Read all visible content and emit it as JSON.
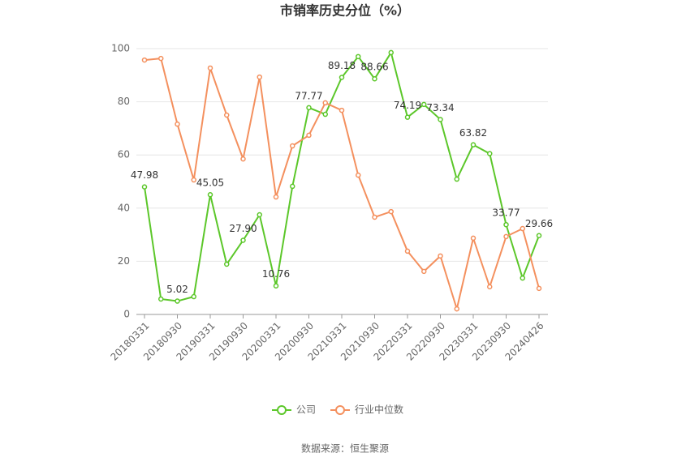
{
  "chart_data": {
    "type": "line",
    "title": "市销率历史分位（%）",
    "categories": [
      "20180331",
      null,
      "20180930",
      null,
      "20190331",
      null,
      "20190930",
      null,
      "20200331",
      null,
      "20200930",
      null,
      "20210331",
      null,
      "20210930",
      null,
      "20220331",
      null,
      "20220930",
      null,
      "20230331",
      null,
      "20230930",
      null,
      "20240426"
    ],
    "series": [
      {
        "name": "公司",
        "color": "#5cc72a",
        "values": [
          47.98,
          5.8,
          5.02,
          6.7,
          45.05,
          18.9,
          27.9,
          37.5,
          10.76,
          48.2,
          77.77,
          75.3,
          89.18,
          97.0,
          88.66,
          98.5,
          74.19,
          79.0,
          73.34,
          50.9,
          63.82,
          60.5,
          33.77,
          13.7,
          29.66
        ],
        "value_labels": [
          "47.98",
          null,
          "5.02",
          null,
          "45.05",
          null,
          "27.90",
          null,
          "10.76",
          null,
          "77.77",
          null,
          "89.18",
          null,
          "88.66",
          null,
          "74.19",
          null,
          "73.34",
          null,
          "63.82",
          null,
          "33.77",
          null,
          "29.66"
        ]
      },
      {
        "name": "行业中位数",
        "color": "#f4905e",
        "values": [
          95.7,
          96.3,
          71.6,
          50.6,
          92.7,
          75.0,
          58.5,
          89.3,
          44.2,
          63.4,
          67.4,
          79.6,
          76.8,
          52.4,
          36.6,
          38.7,
          23.8,
          16.2,
          22.0,
          2.1,
          28.7,
          10.4,
          29.3,
          32.3,
          9.8
        ]
      }
    ],
    "ylim": [
      0,
      100
    ],
    "yticks": [
      0,
      20,
      40,
      60,
      80,
      100
    ],
    "grid": true,
    "source": "数据来源：恒生聚源"
  }
}
